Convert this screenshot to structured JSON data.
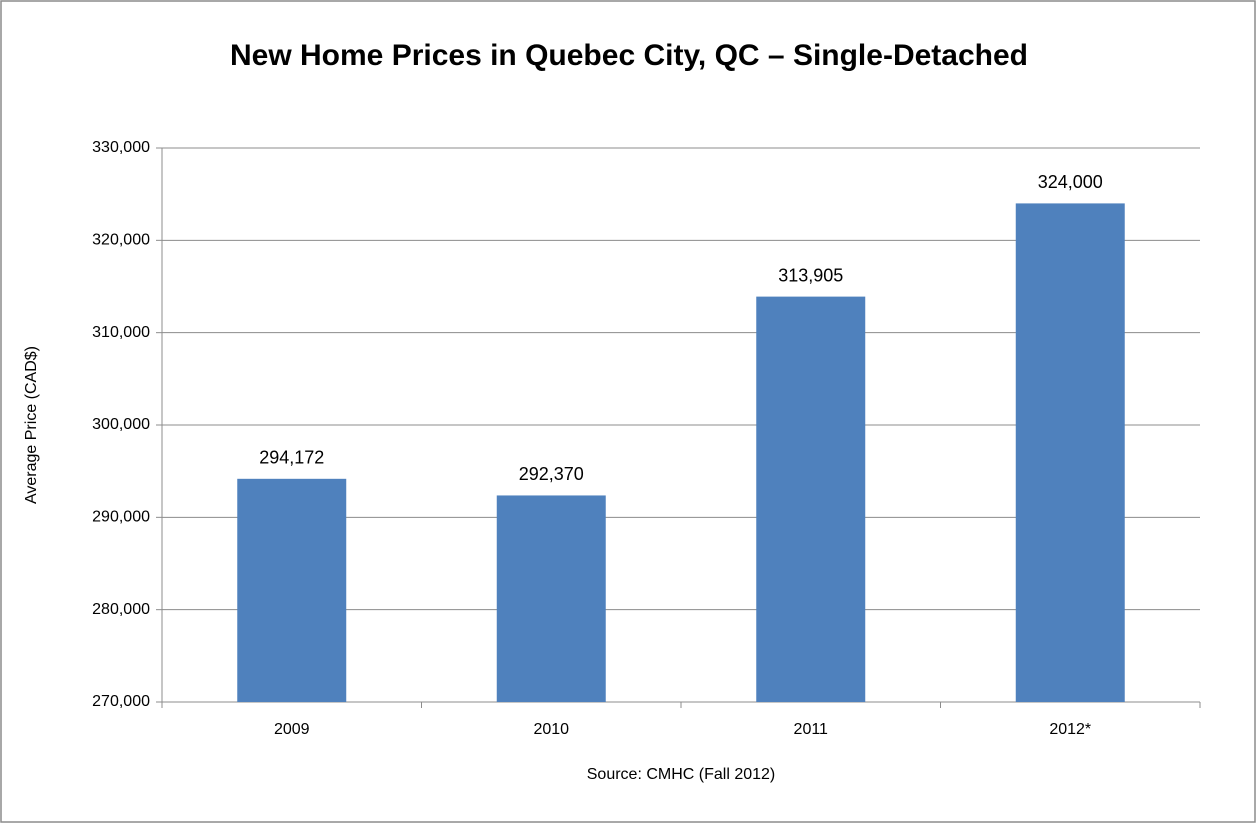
{
  "chart_data": {
    "type": "bar",
    "title": "New Home Prices in Quebec City, QC – Single-Detached",
    "x_label": "Source: CMHC (Fall 2012)",
    "y_label": "Average Price (CAD$)",
    "categories": [
      "2009",
      "2010",
      "2011",
      "2012*"
    ],
    "values": [
      294172,
      292370,
      313905,
      324000
    ],
    "value_labels": [
      "294,172",
      "292,370",
      "313,905",
      "324,000"
    ],
    "color": "#4f81bd",
    "ylim": [
      270000,
      330000
    ],
    "yticks": [
      {
        "value": 270000,
        "label": "270,000"
      },
      {
        "value": 280000,
        "label": "280,000"
      },
      {
        "value": 290000,
        "label": "290,000"
      },
      {
        "value": 300000,
        "label": "300,000"
      },
      {
        "value": 310000,
        "label": "310,000"
      },
      {
        "value": 320000,
        "label": "320,000"
      },
      {
        "value": 330000,
        "label": "330,000"
      }
    ],
    "grid": true
  }
}
